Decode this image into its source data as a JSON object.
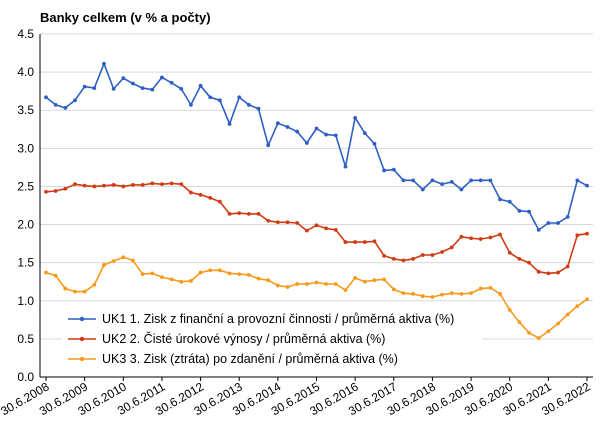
{
  "chart_data": {
    "type": "line",
    "title": "Banky celkem (v % a počty)",
    "xlabel": "",
    "ylabel": "",
    "ylim": [
      0,
      4.5
    ],
    "yticks": [
      "0.0",
      "0.5",
      "1.0",
      "1.5",
      "2.0",
      "2.5",
      "3.0",
      "3.5",
      "4.0",
      "4.5"
    ],
    "grid": true,
    "legend_position": "bottom-left",
    "xtick_labels": [
      "30.6.2008",
      "30.6.2009",
      "30.6.2010",
      "30.6.2011",
      "30.6.2012",
      "30.6.2013",
      "30.6.2014",
      "30.6.2015",
      "30.6.2016",
      "30.6.2017",
      "30.6.2018",
      "30.6.2019",
      "30.6.2020",
      "30.6.2021",
      "30.6.2022"
    ],
    "x_start": "2008-06-30",
    "x_step": "quarter",
    "series": [
      {
        "name": "UK1 1. Zisk z finanční a provozní činnosti / průměrná aktiva (%)",
        "color": "#2e5fc4",
        "values": [
          3.67,
          3.57,
          3.53,
          3.63,
          3.81,
          3.79,
          4.11,
          3.78,
          3.92,
          3.85,
          3.79,
          3.77,
          3.93,
          3.86,
          3.78,
          3.57,
          3.82,
          3.67,
          3.63,
          3.32,
          3.67,
          3.57,
          3.52,
          3.04,
          3.33,
          3.28,
          3.22,
          3.07,
          3.26,
          3.18,
          3.17,
          2.76,
          3.4,
          3.2,
          3.06,
          2.71,
          2.72,
          2.58,
          2.58,
          2.46,
          2.58,
          2.53,
          2.56,
          2.46,
          2.58,
          2.58,
          2.58,
          2.33,
          2.3,
          2.18,
          2.17,
          1.93,
          2.02,
          2.02,
          2.1,
          2.58,
          2.51
        ]
      },
      {
        "name": "UK2 2. Čisté úrokové výnosy / průměrná aktiva (%)",
        "color": "#d13b14",
        "values": [
          2.43,
          2.44,
          2.47,
          2.53,
          2.51,
          2.5,
          2.51,
          2.52,
          2.5,
          2.52,
          2.52,
          2.54,
          2.53,
          2.54,
          2.53,
          2.42,
          2.39,
          2.35,
          2.3,
          2.14,
          2.15,
          2.14,
          2.14,
          2.05,
          2.03,
          2.03,
          2.02,
          1.92,
          1.99,
          1.95,
          1.93,
          1.77,
          1.77,
          1.77,
          1.78,
          1.59,
          1.55,
          1.53,
          1.55,
          1.6,
          1.6,
          1.64,
          1.7,
          1.84,
          1.82,
          1.81,
          1.83,
          1.87,
          1.63,
          1.55,
          1.5,
          1.38,
          1.36,
          1.37,
          1.45,
          1.86,
          1.88
        ]
      },
      {
        "name": "UK3 3. Zisk (ztráta) po zdanění / průměrná aktiva (%)",
        "color": "#f79a1a",
        "values": [
          1.37,
          1.33,
          1.16,
          1.12,
          1.12,
          1.21,
          1.47,
          1.52,
          1.57,
          1.53,
          1.35,
          1.36,
          1.31,
          1.28,
          1.25,
          1.26,
          1.37,
          1.4,
          1.4,
          1.36,
          1.35,
          1.34,
          1.29,
          1.27,
          1.2,
          1.18,
          1.22,
          1.22,
          1.24,
          1.22,
          1.22,
          1.14,
          1.3,
          1.25,
          1.27,
          1.28,
          1.15,
          1.1,
          1.09,
          1.06,
          1.05,
          1.08,
          1.1,
          1.09,
          1.1,
          1.16,
          1.17,
          1.09,
          0.88,
          0.72,
          0.58,
          0.51,
          0.6,
          0.7,
          0.82,
          0.93,
          1.02
        ]
      }
    ]
  }
}
